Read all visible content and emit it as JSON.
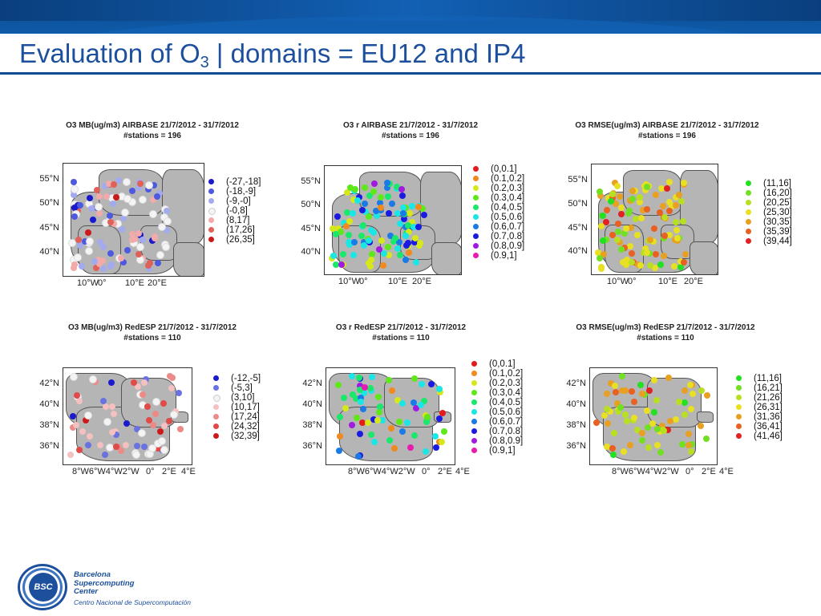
{
  "slide": {
    "title_pre": "Evaluation of O",
    "title_sub": "3",
    "title_post": " | domains = EU12 and IP4"
  },
  "colors": {
    "header_blue": "#0d4c92",
    "title_blue": "#1c4f9c",
    "land_gray": "#b5b5b5"
  },
  "panels": [
    {
      "title1": "O3 MB(ug/m3) AIRBASE 21/7/2012 - 31/7/2012",
      "title2": "#stations = 196",
      "map": "europe",
      "yticks": [
        "55°N",
        "50°N",
        "45°N",
        "40°N"
      ],
      "xticks": [
        "10°W",
        "0°",
        "10°E",
        "20°E"
      ],
      "legend": [
        {
          "label": "(-27,-18]",
          "color": "#1a1acc"
        },
        {
          "label": "(-18,-9]",
          "color": "#4d5ae0"
        },
        {
          "label": "(-9,-0]",
          "color": "#a4aaee"
        },
        {
          "label": "(-0,8]",
          "color": "#f4f4f4"
        },
        {
          "label": "(8,17]",
          "color": "#f2aaaa"
        },
        {
          "label": "(17,26]",
          "color": "#e0605a"
        },
        {
          "label": "(26,35]",
          "color": "#cc1a1a"
        }
      ]
    },
    {
      "title1": "O3 r AIRBASE 21/7/2012 - 31/7/2012",
      "title2": "#stations = 196",
      "map": "europe",
      "yticks": [
        "55°N",
        "50°N",
        "45°N",
        "40°N"
      ],
      "xticks": [
        "10°W",
        "0°",
        "10°E",
        "20°E"
      ],
      "legend": [
        {
          "label": "(0,0.1]",
          "color": "#e41a1c"
        },
        {
          "label": "(0.1,0.2]",
          "color": "#f08a1e"
        },
        {
          "label": "(0.2,0.3]",
          "color": "#d6e81a"
        },
        {
          "label": "(0.3,0.4]",
          "color": "#5ee81a"
        },
        {
          "label": "(0.4,0.5]",
          "color": "#1ae86a"
        },
        {
          "label": "(0.5,0.6]",
          "color": "#1ae6e6"
        },
        {
          "label": "(0.6,0.7]",
          "color": "#1a7ae6"
        },
        {
          "label": "(0.7,0.8]",
          "color": "#1a1ae0"
        },
        {
          "label": "(0.8,0.9]",
          "color": "#a01ae0"
        },
        {
          "label": "(0.9,1]",
          "color": "#e81ab0"
        }
      ]
    },
    {
      "title1": "O3 RMSE(ug/m3) AIRBASE 21/7/2012 - 31/7/2012",
      "title2": "#stations = 196",
      "map": "europe",
      "yticks": [
        "55°N",
        "50°N",
        "45°N",
        "40°N"
      ],
      "xticks": [
        "10°W",
        "0°",
        "10°E",
        "20°E"
      ],
      "legend": [
        {
          "label": "(11,16]",
          "color": "#22e022"
        },
        {
          "label": "(16,20]",
          "color": "#72e022"
        },
        {
          "label": "(20,25]",
          "color": "#b8e022"
        },
        {
          "label": "(25,30]",
          "color": "#e8e022"
        },
        {
          "label": "(30,35]",
          "color": "#e8a022"
        },
        {
          "label": "(35,39]",
          "color": "#e86022"
        },
        {
          "label": "(39,44]",
          "color": "#e02222"
        }
      ]
    },
    {
      "title1": "O3 MB(ug/m3) RedESP 21/7/2012 - 31/7/2012",
      "title2": "#stations = 110",
      "map": "iberia",
      "yticks": [
        "42°N",
        "40°N",
        "38°N",
        "36°N"
      ],
      "xticks": [
        "8°W6°W4°W2°W",
        "0°",
        "2°E",
        "4°E"
      ],
      "legend": [
        {
          "label": "(-12,-5]",
          "color": "#1a1acc"
        },
        {
          "label": "(-5,3]",
          "color": "#6a72e0"
        },
        {
          "label": "(3,10]",
          "color": "#f4f4f4"
        },
        {
          "label": "(10,17]",
          "color": "#f4c0c0"
        },
        {
          "label": "(17,24]",
          "color": "#ec8a88"
        },
        {
          "label": "(24,32]",
          "color": "#e04a48"
        },
        {
          "label": "(32,39]",
          "color": "#cc1a1a"
        }
      ]
    },
    {
      "title1": "O3 r RedESP 21/7/2012 - 31/7/2012",
      "title2": "#stations = 110",
      "map": "iberia",
      "yticks": [
        "42°N",
        "40°N",
        "38°N",
        "36°N"
      ],
      "xticks": [
        "8°W6°W4°W2°W",
        "0°",
        "2°E",
        "4°E"
      ],
      "legend": [
        {
          "label": "(0,0.1]",
          "color": "#e41a1c"
        },
        {
          "label": "(0.1,0.2]",
          "color": "#f08a1e"
        },
        {
          "label": "(0.2,0.3]",
          "color": "#d6e81a"
        },
        {
          "label": "(0.3,0.4]",
          "color": "#5ee81a"
        },
        {
          "label": "(0.4,0.5]",
          "color": "#1ae86a"
        },
        {
          "label": "(0.5,0.6]",
          "color": "#1ae6e6"
        },
        {
          "label": "(0.6,0.7]",
          "color": "#1a7ae6"
        },
        {
          "label": "(0.7,0.8]",
          "color": "#1a1ae0"
        },
        {
          "label": "(0.8,0.9]",
          "color": "#a01ae0"
        },
        {
          "label": "(0.9,1]",
          "color": "#e81ab0"
        }
      ]
    },
    {
      "title1": "O3 RMSE(ug/m3) RedESP 21/7/2012 - 31/7/2012",
      "title2": "#stations = 110",
      "map": "iberia",
      "yticks": [
        "42°N",
        "40°N",
        "38°N",
        "36°N"
      ],
      "xticks": [
        "8°W6°W4°W2°W",
        "0°",
        "2°E",
        "4°E"
      ],
      "legend": [
        {
          "label": "(11,16]",
          "color": "#22e022"
        },
        {
          "label": "(16,21]",
          "color": "#72e022"
        },
        {
          "label": "(21,26]",
          "color": "#b8e022"
        },
        {
          "label": "(26,31]",
          "color": "#e8e022"
        },
        {
          "label": "(31,36]",
          "color": "#e8a022"
        },
        {
          "label": "(36,41]",
          "color": "#e86022"
        },
        {
          "label": "(41,46]",
          "color": "#e02222"
        }
      ]
    }
  ],
  "footer": {
    "logo_text": "BSC",
    "org_line1": "Barcelona",
    "org_line2": "Supercomputing",
    "org_line3": "Center",
    "org_sub": "Centro Nacional de Supercomputación"
  }
}
